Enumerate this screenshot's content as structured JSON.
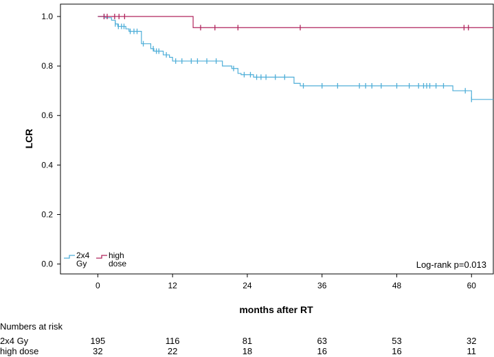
{
  "chart_data": {
    "type": "line",
    "chart_subtype": "kaplan-meier",
    "title": "",
    "xlabel": "months after RT",
    "ylabel": "LCR",
    "xlim": [
      -6,
      63.5
    ],
    "ylim": [
      -0.04,
      1.05
    ],
    "x_ticks": [
      0,
      12,
      24,
      36,
      48,
      60
    ],
    "y_ticks": [
      0.0,
      0.2,
      0.4,
      0.6,
      0.8,
      1.0
    ],
    "y_tick_labels": [
      "0.0",
      "0.2",
      "0.4",
      "0.6",
      "0.8",
      "1.0"
    ],
    "grid": false,
    "legend_placement": "bottom-left",
    "annotation": "Log-rank p=0.013",
    "series": [
      {
        "name": "2x4 Gy",
        "legend_lines": [
          "2x4",
          "Gy"
        ],
        "color": "#4eaed8",
        "steps": [
          [
            0,
            1.0
          ],
          [
            1.2,
            0.995
          ],
          [
            2.2,
            0.985
          ],
          [
            2.8,
            0.97
          ],
          [
            3.2,
            0.96
          ],
          [
            4.5,
            0.95
          ],
          [
            5.0,
            0.94
          ],
          [
            7.0,
            0.89
          ],
          [
            8.5,
            0.87
          ],
          [
            9.0,
            0.86
          ],
          [
            10.5,
            0.845
          ],
          [
            11.5,
            0.835
          ],
          [
            12.0,
            0.82
          ],
          [
            20.0,
            0.8
          ],
          [
            21.5,
            0.79
          ],
          [
            22.5,
            0.77
          ],
          [
            23.0,
            0.765
          ],
          [
            25.0,
            0.755
          ],
          [
            31.5,
            0.73
          ],
          [
            32.5,
            0.72
          ],
          [
            57.0,
            0.7
          ],
          [
            60.0,
            0.665
          ],
          [
            63.5,
            0.665
          ]
        ],
        "censored": [
          [
            1.0,
            1.0
          ],
          [
            2.8,
            0.97
          ],
          [
            3.3,
            0.96
          ],
          [
            3.8,
            0.96
          ],
          [
            4.2,
            0.96
          ],
          [
            5.2,
            0.94
          ],
          [
            5.8,
            0.94
          ],
          [
            6.3,
            0.94
          ],
          [
            7.3,
            0.89
          ],
          [
            8.9,
            0.87
          ],
          [
            9.4,
            0.86
          ],
          [
            9.8,
            0.86
          ],
          [
            11.0,
            0.845
          ],
          [
            12.5,
            0.82
          ],
          [
            13.5,
            0.82
          ],
          [
            15.0,
            0.82
          ],
          [
            16.0,
            0.82
          ],
          [
            17.5,
            0.82
          ],
          [
            19.0,
            0.82
          ],
          [
            21.8,
            0.79
          ],
          [
            23.5,
            0.765
          ],
          [
            24.5,
            0.765
          ],
          [
            25.5,
            0.755
          ],
          [
            26.2,
            0.755
          ],
          [
            27.0,
            0.755
          ],
          [
            28.5,
            0.755
          ],
          [
            30.0,
            0.755
          ],
          [
            33.0,
            0.72
          ],
          [
            36.0,
            0.72
          ],
          [
            38.5,
            0.72
          ],
          [
            42.0,
            0.72
          ],
          [
            43.0,
            0.72
          ],
          [
            44.0,
            0.72
          ],
          [
            45.5,
            0.72
          ],
          [
            48.0,
            0.72
          ],
          [
            50.0,
            0.72
          ],
          [
            51.5,
            0.72
          ],
          [
            52.3,
            0.72
          ],
          [
            52.8,
            0.72
          ],
          [
            53.3,
            0.72
          ],
          [
            54.3,
            0.72
          ],
          [
            55.5,
            0.72
          ],
          [
            59.0,
            0.7
          ],
          [
            60.0,
            0.665
          ]
        ]
      },
      {
        "name": "high dose",
        "legend_lines": [
          "high",
          "dose"
        ],
        "color": "#b0245c",
        "steps": [
          [
            0,
            1.0
          ],
          [
            15.3,
            0.955
          ],
          [
            63.5,
            0.955
          ]
        ],
        "censored": [
          [
            1.0,
            1.0
          ],
          [
            1.5,
            1.0
          ],
          [
            2.7,
            1.0
          ],
          [
            3.4,
            1.0
          ],
          [
            4.3,
            1.0
          ],
          [
            16.5,
            0.955
          ],
          [
            18.8,
            0.955
          ],
          [
            22.5,
            0.955
          ],
          [
            32.5,
            0.955
          ],
          [
            58.8,
            0.955
          ],
          [
            59.5,
            0.955
          ]
        ]
      }
    ]
  },
  "risk_table": {
    "title": "Numbers at risk",
    "times": [
      0,
      12,
      24,
      36,
      48,
      60
    ],
    "rows": [
      {
        "label": "2x4 Gy",
        "values": [
          "195",
          "116",
          "81",
          "63",
          "53",
          "32"
        ]
      },
      {
        "label": "high dose",
        "values": [
          "32",
          "22",
          "18",
          "16",
          "16",
          "11"
        ]
      }
    ]
  }
}
